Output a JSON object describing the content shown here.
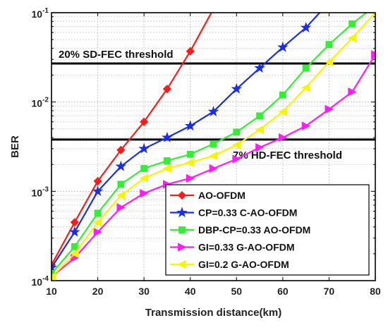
{
  "chart_data": {
    "type": "line",
    "xlabel": "Transmission distance(km)",
    "ylabel": "BER",
    "xlim": [
      10,
      80
    ],
    "ylim": [
      0.0001,
      0.1
    ],
    "yscale": "log",
    "grid": true,
    "x_ticks": [
      10,
      20,
      30,
      40,
      50,
      60,
      70,
      80
    ],
    "x_tick_labels": [
      "10",
      "20",
      "30",
      "40",
      "50",
      "60",
      "70",
      "80"
    ],
    "y_tick_labels": [
      {
        "base": "10",
        "exp": "-4",
        "value": 0.0001
      },
      {
        "base": "10",
        "exp": "-3",
        "value": 0.001
      },
      {
        "base": "10",
        "exp": "-2",
        "value": 0.01
      },
      {
        "base": "10",
        "exp": "-1",
        "value": 0.1
      }
    ],
    "legend_position": "bottom-right",
    "thresholds": [
      {
        "label": "20% SD-FEC threshold",
        "value": 0.027,
        "color": "#000000"
      },
      {
        "label": "7% HD-FEC threshold",
        "value": 0.0038,
        "color": "#000000"
      }
    ],
    "series": [
      {
        "name": "AO-OFDM",
        "color": "#ff1a1a",
        "marker": "diamond",
        "x": [
          10,
          15,
          20,
          25,
          30,
          35,
          40,
          45
        ],
        "y": [
          0.00015,
          0.00045,
          0.0013,
          0.0029,
          0.006,
          0.014,
          0.037,
          0.11
        ]
      },
      {
        "name": "CP=0.33 C-AO-OFDM",
        "color": "#1a2ee6",
        "marker": "star",
        "x": [
          10,
          15,
          20,
          25,
          30,
          35,
          40,
          45,
          50,
          55,
          60,
          65,
          70
        ],
        "y": [
          0.00014,
          0.00035,
          0.001,
          0.0019,
          0.003,
          0.004,
          0.0054,
          0.0078,
          0.014,
          0.024,
          0.041,
          0.068,
          0.13
        ]
      },
      {
        "name": "DBP-CP=0.33 AO-OFDM",
        "color": "#33ee33",
        "marker": "square",
        "x": [
          10,
          15,
          20,
          25,
          30,
          35,
          40,
          45,
          50,
          55,
          60,
          65,
          70,
          75,
          80
        ],
        "y": [
          0.00012,
          0.00024,
          0.00057,
          0.0012,
          0.0018,
          0.0022,
          0.0026,
          0.0034,
          0.0046,
          0.007,
          0.012,
          0.024,
          0.044,
          0.075,
          0.12
        ]
      },
      {
        "name": "GI=0.33 G-AO-OFDM",
        "color": "#ff1aff",
        "marker": "triangle-right",
        "x": [
          10,
          15,
          20,
          25,
          30,
          35,
          40,
          45,
          50,
          55,
          60,
          65,
          70,
          75,
          80
        ],
        "y": [
          0.00011,
          0.00018,
          0.00035,
          0.00066,
          0.00095,
          0.0012,
          0.0014,
          0.0018,
          0.0023,
          0.0031,
          0.004,
          0.0054,
          0.0083,
          0.013,
          0.034
        ]
      },
      {
        "name": "GI=0.2 G-AO-OFDM",
        "color": "#f5f500",
        "marker": "triangle-left",
        "x": [
          10,
          15,
          20,
          25,
          30,
          35,
          40,
          45,
          50,
          55,
          60,
          65,
          70,
          75,
          80
        ],
        "y": [
          0.00011,
          0.0002,
          0.00045,
          0.0009,
          0.0014,
          0.0018,
          0.0021,
          0.0025,
          0.0033,
          0.0049,
          0.0078,
          0.0145,
          0.028,
          0.052,
          0.1
        ]
      }
    ]
  }
}
